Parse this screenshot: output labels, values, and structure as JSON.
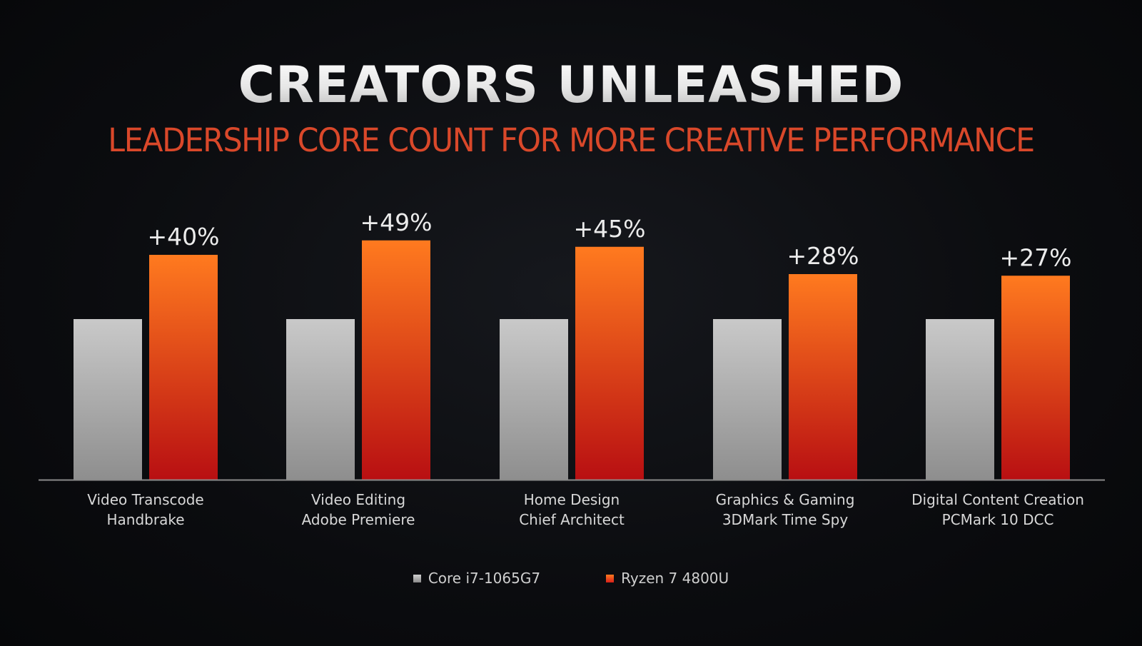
{
  "slide": {
    "title": "CREATORS UNLEASHED",
    "subtitle": "LEADERSHIP CORE COUNT FOR MORE CREATIVE PERFORMANCE"
  },
  "colors": {
    "baseline_top": "#c9c9c9",
    "baseline_bottom": "#8e8e8e",
    "ryzen_top": "#ff7a1f",
    "ryzen_bottom": "#b80f12",
    "axis": "#8a8a8a",
    "subtitle": "#d9482a"
  },
  "chart_data": {
    "type": "bar",
    "categories": [
      [
        "Video Transcode",
        "Handbrake"
      ],
      [
        "Video Editing",
        "Adobe Premiere"
      ],
      [
        "Home Design",
        "Chief Architect"
      ],
      [
        "Graphics & Gaming",
        "3DMark Time Spy"
      ],
      [
        "Digital Content Creation",
        "PCMark 10 DCC"
      ]
    ],
    "series": [
      {
        "name": "Core i7-1065G7",
        "values": [
          100,
          100,
          100,
          100,
          100
        ]
      },
      {
        "name": "Ryzen 7 4800U",
        "values": [
          140,
          149,
          145,
          128,
          127
        ]
      }
    ],
    "data_labels": [
      "+40%",
      "+49%",
      "+45%",
      "+28%",
      "+27%"
    ],
    "ylim": [
      0,
      155
    ],
    "grid": false,
    "legend_position": "bottom-center"
  }
}
